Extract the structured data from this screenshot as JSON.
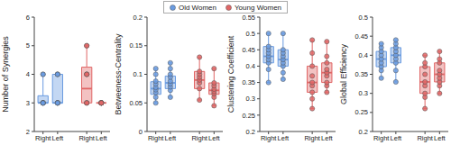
{
  "chart_data": [
    {
      "type": "box",
      "ylabel": "Number of Synergies",
      "legend": "top",
      "grid": false,
      "categories": [
        "Right",
        "Left",
        null,
        "Right",
        "Left"
      ],
      "ylim": [
        2,
        6
      ],
      "yticks": [
        2,
        3,
        4,
        5,
        6
      ],
      "series": [
        {
          "name": "Old Women",
          "color": "#6a9be0",
          "values": [
            [
              3,
              3,
              3,
              3,
              3,
              3,
              4,
              4
            ],
            [
              3,
              3,
              3,
              3,
              3,
              4,
              4,
              4
            ],
            null,
            null,
            null
          ],
          "boxes": [
            {
              "min": 3,
              "q1": 3,
              "median": 3,
              "q3": 3.25,
              "max": 4
            },
            {
              "min": 3,
              "q1": 3,
              "median": 3,
              "q3": 4,
              "max": 4
            },
            null,
            null,
            null
          ]
        },
        {
          "name": "Young Women",
          "color": "#e06666",
          "values": [
            null,
            null,
            null,
            [
              3,
              3,
              3,
              4,
              4,
              4,
              5,
              5
            ],
            [
              3,
              3,
              3,
              3,
              3,
              3,
              3,
              3
            ]
          ],
          "boxes": [
            null,
            null,
            null,
            {
              "min": 3,
              "q1": 3,
              "median": 3.5,
              "q3": 4.25,
              "max": 5
            },
            {
              "min": 3,
              "q1": 3,
              "median": 3,
              "q3": 3,
              "max": 3
            }
          ]
        }
      ]
    },
    {
      "type": "box",
      "ylabel": "Betweeness-Centrality",
      "grid": false,
      "categories": [
        "Right",
        "Left",
        null,
        "Right",
        "Left"
      ],
      "ylim": [
        0,
        0.2
      ],
      "yticks": [
        0,
        0.05,
        0.1,
        0.15,
        0.2
      ],
      "series": [
        {
          "name": "Old Women",
          "color": "#6a9be0",
          "values": [
            [
              0.05,
              0.06,
              0.068,
              0.073,
              0.077,
              0.083,
              0.088,
              0.1,
              0.11
            ],
            [
              0.06,
              0.072,
              0.078,
              0.083,
              0.088,
              0.095,
              0.1,
              0.11,
              0.12
            ],
            null,
            null,
            null
          ],
          "boxes": [
            {
              "min": 0.05,
              "q1": 0.065,
              "median": 0.075,
              "q3": 0.087,
              "max": 0.11
            },
            {
              "min": 0.06,
              "q1": 0.075,
              "median": 0.085,
              "q3": 0.097,
              "max": 0.12
            },
            null,
            null,
            null
          ]
        },
        {
          "name": "Young Women",
          "color": "#e06666",
          "values": [
            null,
            null,
            null,
            [
              0.055,
              0.075,
              0.085,
              0.09,
              0.095,
              0.1,
              0.105,
              0.13
            ],
            [
              0.045,
              0.06,
              0.066,
              0.07,
              0.074,
              0.08,
              0.085,
              0.11
            ]
          ],
          "boxes": [
            null,
            null,
            null,
            {
              "min": 0.055,
              "q1": 0.075,
              "median": 0.09,
              "q3": 0.105,
              "max": 0.13
            },
            {
              "min": 0.045,
              "q1": 0.065,
              "median": 0.072,
              "q3": 0.085,
              "max": 0.11
            }
          ]
        }
      ]
    },
    {
      "type": "box",
      "ylabel": "Clustering Coefficient",
      "grid": false,
      "categories": [
        "Right",
        "Left",
        null,
        "Right",
        "Left"
      ],
      "ylim": [
        0.2,
        0.55
      ],
      "yticks": [
        0.2,
        0.25,
        0.3,
        0.35,
        0.4,
        0.45,
        0.5,
        0.55
      ],
      "series": [
        {
          "name": "Old Women",
          "color": "#6a9be0",
          "values": [
            [
              0.35,
              0.39,
              0.41,
              0.42,
              0.43,
              0.44,
              0.45,
              0.46,
              0.5
            ],
            [
              0.36,
              0.38,
              0.4,
              0.41,
              0.42,
              0.43,
              0.44,
              0.45,
              0.5
            ],
            null,
            null,
            null
          ],
          "boxes": [
            {
              "min": 0.35,
              "q1": 0.41,
              "median": 0.43,
              "q3": 0.46,
              "max": 0.5
            },
            {
              "min": 0.36,
              "q1": 0.4,
              "median": 0.42,
              "q3": 0.45,
              "max": 0.5
            },
            null,
            null,
            null
          ]
        },
        {
          "name": "Young Women",
          "color": "#e06666",
          "values": [
            null,
            null,
            null,
            [
              0.27,
              0.3,
              0.32,
              0.34,
              0.35,
              0.37,
              0.4,
              0.44,
              0.48
            ],
            [
              0.32,
              0.34,
              0.35,
              0.37,
              0.38,
              0.39,
              0.41,
              0.43,
              0.475
            ]
          ],
          "boxes": [
            null,
            null,
            null,
            {
              "min": 0.27,
              "q1": 0.32,
              "median": 0.35,
              "q3": 0.4,
              "max": 0.48
            },
            {
              "min": 0.32,
              "q1": 0.35,
              "median": 0.38,
              "q3": 0.41,
              "max": 0.475
            }
          ]
        }
      ]
    },
    {
      "type": "box",
      "ylabel": "Global Efficiency",
      "grid": false,
      "categories": [
        "Right",
        "Left",
        null,
        "Right",
        "Left"
      ],
      "ylim": [
        0.2,
        0.5
      ],
      "yticks": [
        0.2,
        0.25,
        0.3,
        0.35,
        0.4,
        0.45,
        0.5
      ],
      "series": [
        {
          "name": "Old Women",
          "color": "#6a9be0",
          "values": [
            [
              0.34,
              0.36,
              0.37,
              0.38,
              0.39,
              0.4,
              0.41,
              0.42,
              0.43
            ],
            [
              0.33,
              0.36,
              0.38,
              0.39,
              0.4,
              0.41,
              0.42,
              0.43,
              0.44
            ],
            null,
            null,
            null
          ],
          "boxes": [
            {
              "min": 0.34,
              "q1": 0.37,
              "median": 0.39,
              "q3": 0.41,
              "max": 0.43
            },
            {
              "min": 0.33,
              "q1": 0.38,
              "median": 0.4,
              "q3": 0.42,
              "max": 0.44
            },
            null,
            null,
            null
          ]
        },
        {
          "name": "Young Women",
          "color": "#e06666",
          "values": [
            null,
            null,
            null,
            [
              0.26,
              0.29,
              0.3,
              0.32,
              0.33,
              0.35,
              0.37,
              0.38,
              0.4
            ],
            [
              0.3,
              0.32,
              0.33,
              0.34,
              0.35,
              0.36,
              0.38,
              0.39,
              0.41
            ]
          ],
          "boxes": [
            null,
            null,
            null,
            {
              "min": 0.26,
              "q1": 0.3,
              "median": 0.33,
              "q3": 0.37,
              "max": 0.4
            },
            {
              "min": 0.3,
              "q1": 0.33,
              "median": 0.35,
              "q3": 0.38,
              "max": 0.41
            }
          ]
        }
      ]
    }
  ]
}
